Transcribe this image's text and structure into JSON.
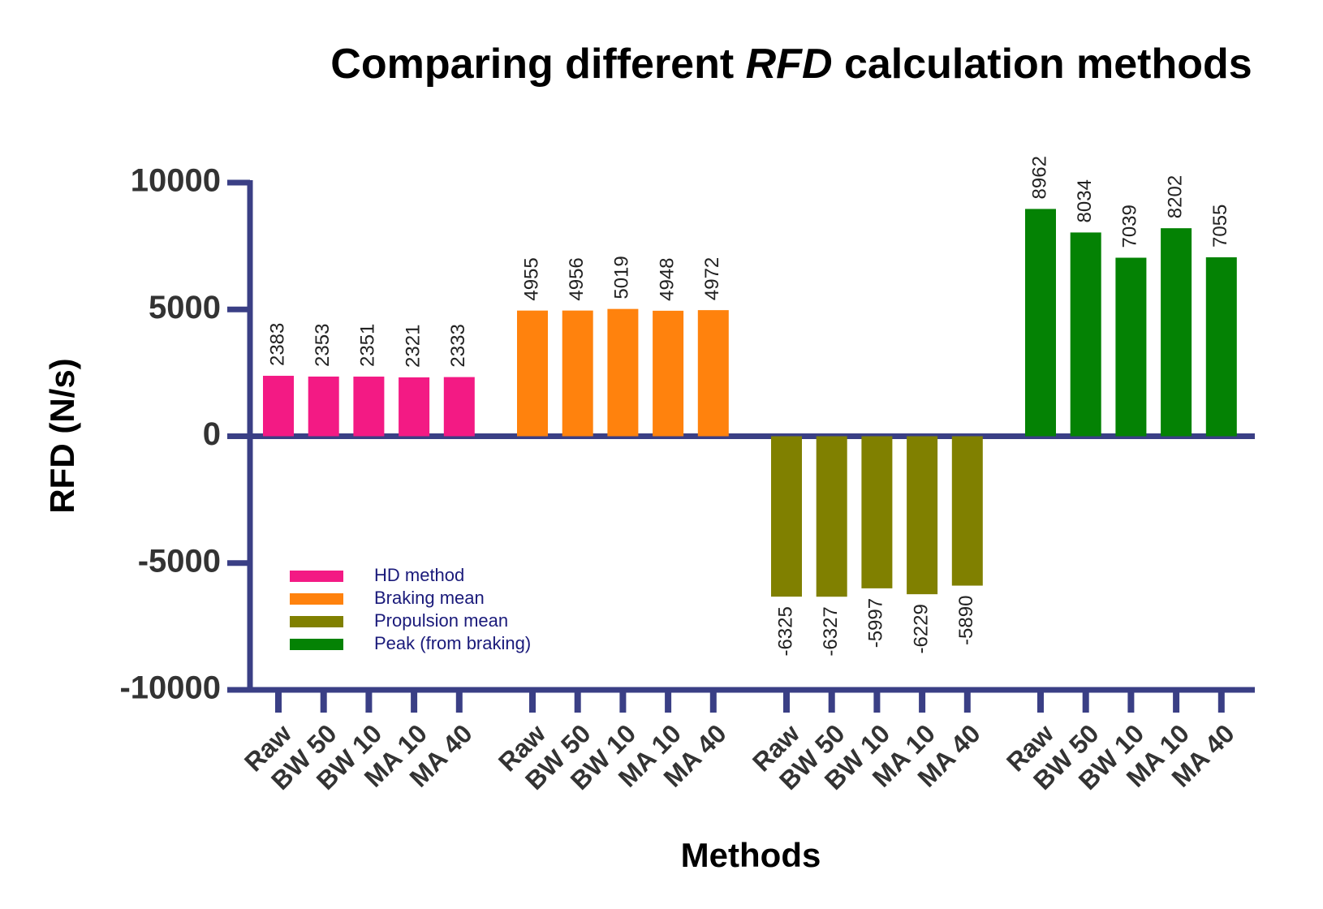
{
  "chart_data": {
    "type": "bar",
    "title": [
      {
        "text": "Comparing different "
      },
      {
        "text": "RFD",
        "italic": true
      },
      {
        "text": " calculation methods"
      }
    ],
    "y_label": "RFD (N/s)",
    "x_label": "Methods",
    "categories": [
      "Raw",
      "BW 50",
      "BW 10",
      "MA 10",
      "MA 40"
    ],
    "series": [
      {
        "name": "HD method",
        "color": "#f31a84",
        "values": [
          2383,
          2353,
          2351,
          2321,
          2333
        ]
      },
      {
        "name": "Braking mean",
        "color": "#ff820d",
        "values": [
          4955,
          4956,
          5019,
          4948,
          4972
        ]
      },
      {
        "name": "Propulsion mean",
        "color": "#808000",
        "values": [
          -6325,
          -6327,
          -5997,
          -6229,
          -5890
        ]
      },
      {
        "name": "Peak (from braking)",
        "color": "#048204",
        "values": [
          8962,
          8034,
          7039,
          8202,
          7055
        ]
      }
    ],
    "ylim": [
      -10000,
      10000
    ],
    "yticks": [
      -10000,
      -5000,
      0,
      5000,
      10000
    ],
    "legend": "lower-left"
  }
}
